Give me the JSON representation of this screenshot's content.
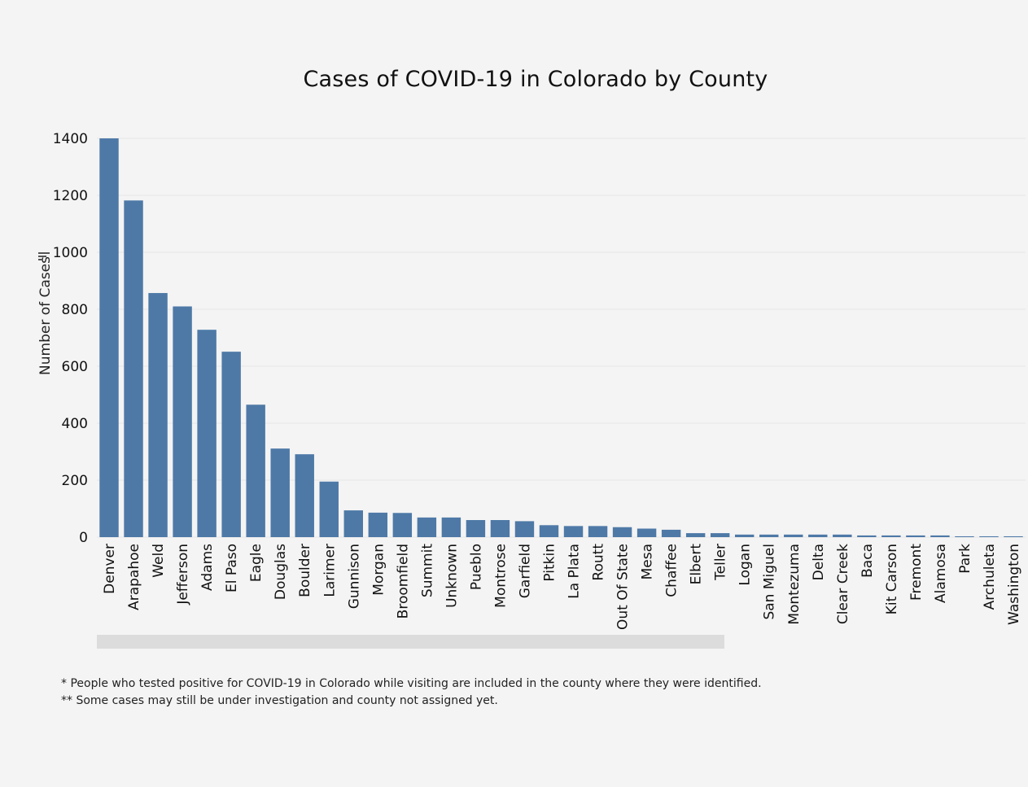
{
  "chart_data": {
    "type": "bar",
    "title": "Cases of COVID-19 in Colorado by County",
    "xlabel": "",
    "ylabel": "Number of Cases",
    "ylim": [
      0,
      1400
    ],
    "yticks": [
      0,
      200,
      400,
      600,
      800,
      1000,
      1200,
      1400
    ],
    "grid": true,
    "bar_color": "#4e79a7",
    "categories": [
      "Denver",
      "Arapahoe",
      "Weld",
      "Jefferson",
      "Adams",
      "El Paso",
      "Eagle",
      "Douglas",
      "Boulder",
      "Larimer",
      "Gunnison",
      "Morgan",
      "Broomfield",
      "Summit",
      "Unknown",
      "Pueblo",
      "Montrose",
      "Garfield",
      "Pitkin",
      "La Plata",
      "Routt",
      "Out Of State",
      "Mesa",
      "Chaffee",
      "Elbert",
      "Teller",
      "Logan",
      "San Miguel",
      "Montezuma",
      "Delta",
      "Clear Creek",
      "Baca",
      "Kit Carson",
      "Fremont",
      "Alamosa",
      "Park",
      "Archuleta",
      "Washington"
    ],
    "values": [
      1400,
      1182,
      857,
      810,
      728,
      651,
      465,
      311,
      291,
      195,
      94,
      86,
      85,
      69,
      69,
      60,
      60,
      56,
      42,
      39,
      39,
      35,
      30,
      26,
      14,
      14,
      9,
      9,
      9,
      9,
      9,
      6,
      6,
      6,
      6,
      3,
      3,
      3
    ]
  },
  "footnotes": {
    "line1": "* People who tested positive for COVID-19 in Colorado while visiting are included in the county where they were identified.",
    "line2": "** Some cases may still be under investigation and county not assigned yet."
  }
}
